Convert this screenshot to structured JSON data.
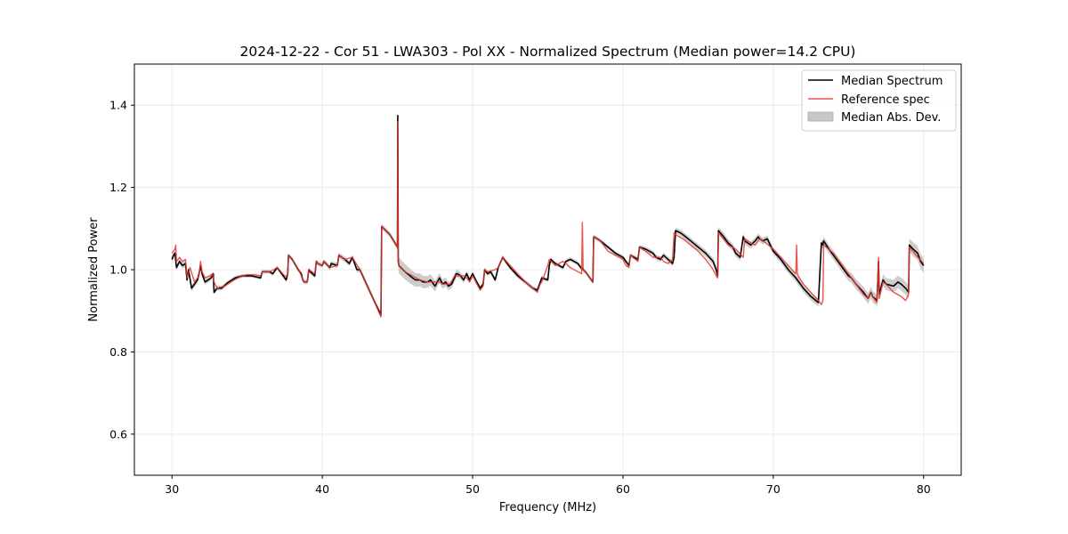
{
  "chart_data": {
    "type": "line",
    "title": "2024-12-22 - Cor 51 - LWA303 - Pol XX - Normalized Spectrum (Median power=14.2 CPU)",
    "xlabel": "Frequency (MHz)",
    "ylabel": "Normalized Power",
    "xlim": [
      27.5,
      82.5
    ],
    "ylim": [
      0.5,
      1.5
    ],
    "xticks": [
      30,
      40,
      50,
      60,
      70,
      80
    ],
    "yticks": [
      0.6,
      0.8,
      1.0,
      1.2,
      1.4
    ],
    "xtick_labels": [
      "30",
      "40",
      "50",
      "60",
      "70",
      "80"
    ],
    "ytick_labels": [
      "0.6",
      "0.8",
      "1.0",
      "1.2",
      "1.4"
    ],
    "grid": true,
    "legend_position": "top-right",
    "colors": {
      "median": "#000000",
      "reference": "#e8352f",
      "mad": "#c8c8c8"
    },
    "series": [
      {
        "name": "Median Spectrum",
        "key": "median",
        "x": [
          30.0,
          30.1,
          30.2,
          30.3,
          30.5,
          30.7,
          30.9,
          31.0,
          31.1,
          31.3,
          31.5,
          31.7,
          31.8,
          31.9,
          32.0,
          32.2,
          32.4,
          32.6,
          32.75,
          32.8,
          33.0,
          33.3,
          33.7,
          34.2,
          34.7,
          35.3,
          35.9,
          36.0,
          36.3,
          36.5,
          36.7,
          37.0,
          37.3,
          37.6,
          37.7,
          37.75,
          38.0,
          38.4,
          38.6,
          38.7,
          38.8,
          39.0,
          39.1,
          39.2,
          39.5,
          39.6,
          39.7,
          40.0,
          40.1,
          40.5,
          40.6,
          41.0,
          41.1,
          41.3,
          41.5,
          41.8,
          42.0,
          42.3,
          42.5,
          43.0,
          43.5,
          43.9,
          43.95,
          44.5,
          45.0,
          45.02,
          45.05,
          45.1,
          45.5,
          46.0,
          46.2,
          46.5,
          46.7,
          47.0,
          47.2,
          47.5,
          47.8,
          48.0,
          48.2,
          48.4,
          48.6,
          48.8,
          48.9,
          49.0,
          49.2,
          49.4,
          49.6,
          49.8,
          50.0,
          50.2,
          50.5,
          50.7,
          50.8,
          51.0,
          51.2,
          51.5,
          51.7,
          52.0,
          52.2,
          52.5,
          53.0,
          53.5,
          54.0,
          54.3,
          54.5,
          54.6,
          55.0,
          55.1,
          55.2,
          55.5,
          56.0,
          56.2,
          56.5,
          57.0,
          57.2,
          57.5,
          58.0,
          58.05,
          58.3,
          58.5,
          59.0,
          59.5,
          60.0,
          60.2,
          60.4,
          60.5,
          61.0,
          61.1,
          61.5,
          62.0,
          62.2,
          62.5,
          62.7,
          63.0,
          63.3,
          63.4,
          63.5,
          63.8,
          64.0,
          64.5,
          65.0,
          65.5,
          66.0,
          66.2,
          66.3,
          66.35,
          66.7,
          67.0,
          67.3,
          67.5,
          67.8,
          68.0,
          68.1,
          68.5,
          68.8,
          69.0,
          69.1,
          69.3,
          69.6,
          69.8,
          70.0,
          70.5,
          71.0,
          71.5,
          72.0,
          72.5,
          73.0,
          73.2,
          73.3,
          73.35,
          73.7,
          74.0,
          74.5,
          75.0,
          75.2,
          75.5,
          76.0,
          76.3,
          76.5,
          76.6,
          76.9,
          77.0,
          77.05,
          77.3,
          77.5,
          78.0,
          78.3,
          78.5,
          78.8,
          79.0,
          79.05,
          79.3,
          79.6,
          79.8,
          80.0
        ],
        "y": [
          1.025,
          1.035,
          1.04,
          1.005,
          1.02,
          1.01,
          1.015,
          0.975,
          1.0,
          0.955,
          0.965,
          0.975,
          0.99,
          1.01,
          0.99,
          0.97,
          0.975,
          0.98,
          0.99,
          0.945,
          0.955,
          0.955,
          0.968,
          0.98,
          0.985,
          0.985,
          0.98,
          0.995,
          0.995,
          0.995,
          0.99,
          1.005,
          0.99,
          0.975,
          0.99,
          1.035,
          1.025,
          1.0,
          0.99,
          0.975,
          0.97,
          0.97,
          1.0,
          0.995,
          0.985,
          1.02,
          1.015,
          1.01,
          1.02,
          1.005,
          1.015,
          1.01,
          1.035,
          1.03,
          1.025,
          1.015,
          1.03,
          1.0,
          1.0,
          0.96,
          0.92,
          0.89,
          1.105,
          1.085,
          1.055,
          1.375,
          1.02,
          1.01,
          0.995,
          0.98,
          0.975,
          0.975,
          0.97,
          0.97,
          0.975,
          0.96,
          0.98,
          0.965,
          0.97,
          0.96,
          0.965,
          0.98,
          0.99,
          0.99,
          0.985,
          0.975,
          0.99,
          0.975,
          0.99,
          0.975,
          0.955,
          0.965,
          1.0,
          0.99,
          0.995,
          0.975,
          1.005,
          1.03,
          1.02,
          1.005,
          0.985,
          0.97,
          0.955,
          0.95,
          0.97,
          0.98,
          0.975,
          1.01,
          1.025,
          1.015,
          1.005,
          1.02,
          1.025,
          1.015,
          1.005,
          0.995,
          0.97,
          1.08,
          1.075,
          1.07,
          1.055,
          1.04,
          1.03,
          1.02,
          1.01,
          1.035,
          1.025,
          1.055,
          1.05,
          1.04,
          1.03,
          1.025,
          1.035,
          1.025,
          1.015,
          1.03,
          1.095,
          1.09,
          1.085,
          1.07,
          1.055,
          1.04,
          1.02,
          1.0,
          0.985,
          1.095,
          1.08,
          1.065,
          1.055,
          1.04,
          1.03,
          1.08,
          1.07,
          1.06,
          1.07,
          1.08,
          1.075,
          1.07,
          1.075,
          1.06,
          1.045,
          1.025,
          1.0,
          0.98,
          0.955,
          0.935,
          0.92,
          1.065,
          1.06,
          1.07,
          1.05,
          1.035,
          1.01,
          0.985,
          0.98,
          0.965,
          0.945,
          0.93,
          0.945,
          0.935,
          0.925,
          1.02,
          0.94,
          0.975,
          0.965,
          0.96,
          0.97,
          0.965,
          0.955,
          0.945,
          1.06,
          1.05,
          1.04,
          1.02,
          1.01
        ]
      },
      {
        "name": "Reference spec",
        "key": "reference",
        "x": [
          30.0,
          30.2,
          30.25,
          30.3,
          30.5,
          30.7,
          30.9,
          31.0,
          31.2,
          31.5,
          31.8,
          31.9,
          32.0,
          32.2,
          32.5,
          32.7,
          32.8,
          33.0,
          33.5,
          34.0,
          34.5,
          35.0,
          35.5,
          35.9,
          36.0,
          36.5,
          37.0,
          37.5,
          37.7,
          37.75,
          38.0,
          38.5,
          38.6,
          38.7,
          38.8,
          39.0,
          39.1,
          39.5,
          39.6,
          39.7,
          40.0,
          40.1,
          40.5,
          41.0,
          41.1,
          41.5,
          42.0,
          42.5,
          43.0,
          43.5,
          43.9,
          43.95,
          44.5,
          45.0,
          45.02,
          45.05,
          45.1,
          45.5,
          46.0,
          46.5,
          47.0,
          47.5,
          47.8,
          48.0,
          48.5,
          48.8,
          49.0,
          49.5,
          49.8,
          50.0,
          50.5,
          50.7,
          50.8,
          51.0,
          51.5,
          51.7,
          52.0,
          52.5,
          53.0,
          53.5,
          54.0,
          54.3,
          54.5,
          54.6,
          55.0,
          55.1,
          55.5,
          56.0,
          56.2,
          56.5,
          57.0,
          57.25,
          57.3,
          57.35,
          57.5,
          58.0,
          58.05,
          58.5,
          59.0,
          59.5,
          60.0,
          60.2,
          60.4,
          60.5,
          61.0,
          61.1,
          61.5,
          62.0,
          62.5,
          62.7,
          63.0,
          63.3,
          63.4,
          63.5,
          64.0,
          64.5,
          65.0,
          65.5,
          66.0,
          66.2,
          66.3,
          66.35,
          67.0,
          67.5,
          68.0,
          68.1,
          68.5,
          68.8,
          69.0,
          69.1,
          69.5,
          70.0,
          70.5,
          71.0,
          71.5,
          71.55,
          71.6,
          71.65,
          72.0,
          72.5,
          73.0,
          73.2,
          73.3,
          73.35,
          74.0,
          74.5,
          75.0,
          75.5,
          76.0,
          76.3,
          76.5,
          76.6,
          76.9,
          77.0,
          77.05,
          77.3,
          77.5,
          78.0,
          78.5,
          78.8,
          79.0,
          79.05,
          79.5,
          80.0
        ],
        "y": [
          1.04,
          1.05,
          1.06,
          1.02,
          1.03,
          1.02,
          1.025,
          0.98,
          1.005,
          0.97,
          0.985,
          1.02,
          0.995,
          0.98,
          0.985,
          0.99,
          0.97,
          0.955,
          0.96,
          0.972,
          0.982,
          0.988,
          0.988,
          0.985,
          0.995,
          0.995,
          1.005,
          0.985,
          0.985,
          1.035,
          1.025,
          0.995,
          0.985,
          0.975,
          0.97,
          0.97,
          1.0,
          0.99,
          1.02,
          1.015,
          1.01,
          1.02,
          1.005,
          1.01,
          1.035,
          1.025,
          1.03,
          1.0,
          0.96,
          0.92,
          0.885,
          1.105,
          1.085,
          1.055,
          1.36,
          1.02,
          1.01,
          0.995,
          0.985,
          0.975,
          0.97,
          0.97,
          0.97,
          0.965,
          0.965,
          0.985,
          0.985,
          0.985,
          0.97,
          0.985,
          0.95,
          0.96,
          1.0,
          0.995,
          1.0,
          1.005,
          1.03,
          1.01,
          0.99,
          0.97,
          0.955,
          0.945,
          0.965,
          0.97,
          1.01,
          1.025,
          1.01,
          1.02,
          1.015,
          1.005,
          0.995,
          0.99,
          1.115,
          1.0,
          0.995,
          0.97,
          1.08,
          1.07,
          1.045,
          1.035,
          1.025,
          1.01,
          1.005,
          1.035,
          1.02,
          1.055,
          1.045,
          1.03,
          1.03,
          1.02,
          1.015,
          1.025,
          1.09,
          1.085,
          1.075,
          1.06,
          1.045,
          1.025,
          1.0,
          0.985,
          0.98,
          1.09,
          1.06,
          1.05,
          1.03,
          1.075,
          1.065,
          1.06,
          1.07,
          1.075,
          1.065,
          1.05,
          1.03,
          1.01,
          0.99,
          1.06,
          0.99,
          0.985,
          0.965,
          0.945,
          0.925,
          0.915,
          0.925,
          1.06,
          1.04,
          1.015,
          0.99,
          0.965,
          0.94,
          0.93,
          0.945,
          0.935,
          0.92,
          1.03,
          0.93,
          0.97,
          0.965,
          0.945,
          0.935,
          0.925,
          0.94,
          1.055,
          1.035,
          1.015
        ]
      }
    ],
    "mad_band": {
      "name": "Median Abs. Dev.",
      "x": [
        30.0,
        31.0,
        32.0,
        33.0,
        35.0,
        37.0,
        40.0,
        43.0,
        45.0,
        45.05,
        50.0,
        55.0,
        60.0,
        63.5,
        66.3,
        70.0,
        73.3,
        75.0,
        77.0,
        79.0,
        80.0
      ],
      "half_width": [
        0.006,
        0.008,
        0.007,
        0.006,
        0.004,
        0.005,
        0.006,
        0.007,
        0.006,
        0.02,
        0.006,
        0.005,
        0.005,
        0.007,
        0.009,
        0.008,
        0.01,
        0.012,
        0.014,
        0.016,
        0.018
      ]
    }
  }
}
